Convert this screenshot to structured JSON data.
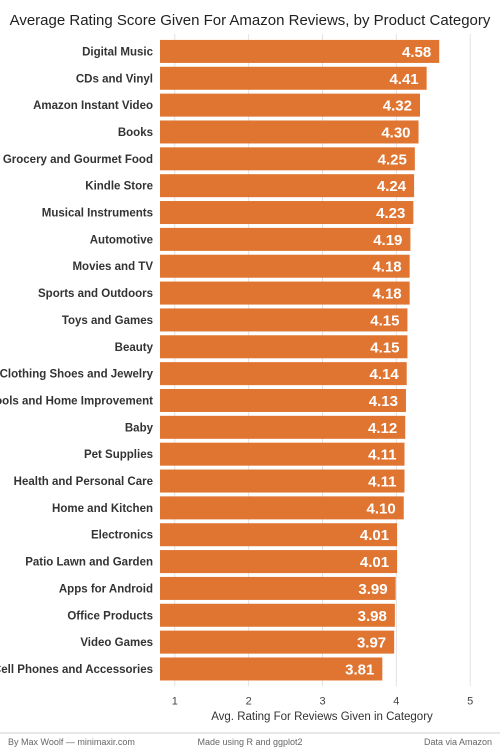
{
  "chart_data": {
    "type": "bar",
    "orientation": "horizontal",
    "title": "Average Rating Score Given For Amazon Reviews, by Product Category",
    "xlabel": "Avg. Rating For Reviews Given in Category",
    "ylabel": "",
    "xlim": [
      0.8,
      5.2
    ],
    "ticks": [
      "1",
      "2",
      "3",
      "4",
      "5"
    ],
    "tick_values": [
      1,
      2,
      3,
      4,
      5
    ],
    "grid": true,
    "bar_color": "#e07532",
    "categories": [
      "Digital Music",
      "CDs and Vinyl",
      "Amazon Instant Video",
      "Books",
      "Grocery and Gourmet Food",
      "Kindle Store",
      "Musical Instruments",
      "Automotive",
      "Movies and TV",
      "Sports and Outdoors",
      "Toys and Games",
      "Beauty",
      "Clothing Shoes and Jewelry",
      "Tools and Home Improvement",
      "Baby",
      "Pet Supplies",
      "Health and Personal Care",
      "Home and Kitchen",
      "Electronics",
      "Patio Lawn and Garden",
      "Apps for Android",
      "Office Products",
      "Video Games",
      "Cell Phones and Accessories"
    ],
    "values": [
      4.58,
      4.41,
      4.32,
      4.3,
      4.25,
      4.24,
      4.23,
      4.19,
      4.18,
      4.18,
      4.15,
      4.15,
      4.14,
      4.13,
      4.12,
      4.11,
      4.11,
      4.1,
      4.01,
      4.01,
      3.99,
      3.98,
      3.97,
      3.81
    ],
    "value_labels": [
      "4.58",
      "4.41",
      "4.32",
      "4.30",
      "4.25",
      "4.24",
      "4.23",
      "4.19",
      "4.18",
      "4.18",
      "4.15",
      "4.15",
      "4.14",
      "4.13",
      "4.12",
      "4.11",
      "4.11",
      "4.10",
      "4.01",
      "4.01",
      "3.99",
      "3.98",
      "3.97",
      "3.81"
    ]
  },
  "footer": {
    "left": "By Max Woolf — minimaxir.com",
    "center": "Made using R and ggplot2",
    "right": "Data via Amazon"
  }
}
